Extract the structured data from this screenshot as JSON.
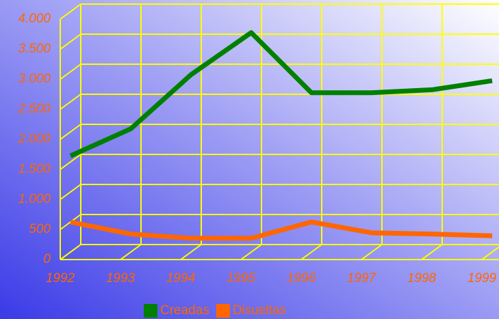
{
  "chart_data": {
    "type": "line",
    "categories": [
      "1992",
      "1993",
      "1994",
      "1995",
      "1996",
      "1997",
      "1998",
      "1999"
    ],
    "series": [
      {
        "name": "Creadas",
        "color": "#008000",
        "values": [
          1600,
          2050,
          2950,
          3650,
          2650,
          2650,
          2700,
          2850
        ]
      },
      {
        "name": "Disueltas",
        "color": "#ff6600",
        "values": [
          500,
          300,
          230,
          230,
          500,
          320,
          300,
          270
        ]
      }
    ],
    "ylim": [
      0,
      4000
    ],
    "yticks": [
      0,
      500,
      {
        "value": 1000,
        "label": "1.000"
      },
      {
        "value": 1500,
        "label": "1.500"
      },
      {
        "value": 2000,
        "label": "2.000"
      },
      {
        "value": 2500,
        "label": "2.500"
      },
      {
        "value": 3000,
        "label": "3.000"
      },
      {
        "value": 3500,
        "label": "3.500"
      },
      {
        "value": 4000,
        "label": "4.000"
      }
    ],
    "grid": true,
    "grid_color": "#ffff00",
    "label_color": "#ff6600",
    "legend": "bottom"
  }
}
